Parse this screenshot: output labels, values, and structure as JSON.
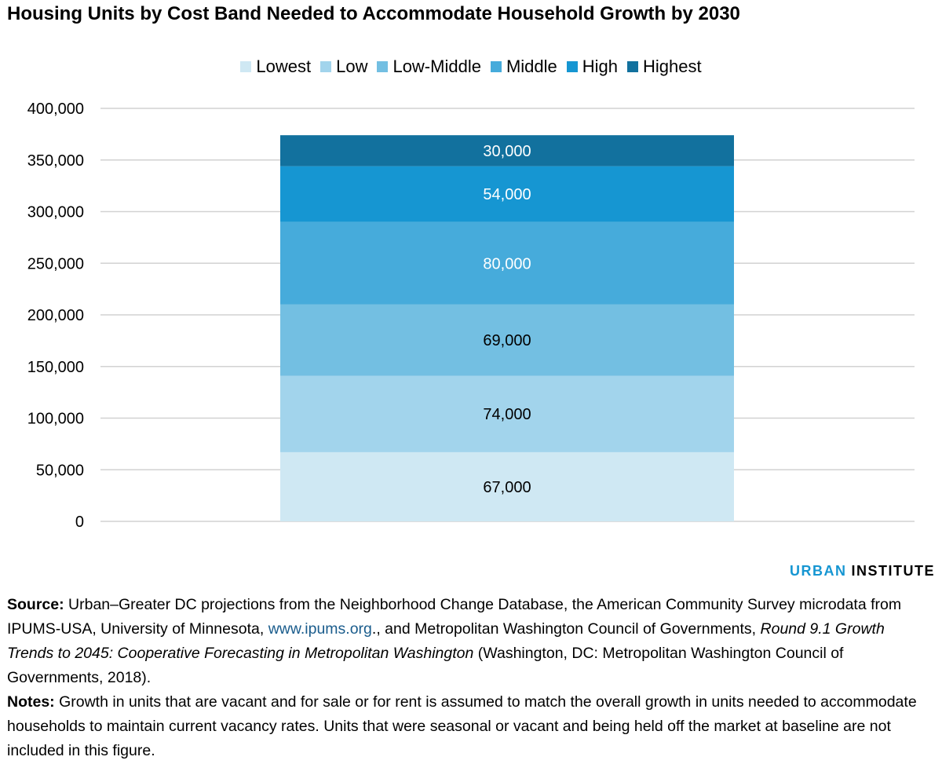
{
  "chart_data": {
    "type": "bar",
    "stacked": true,
    "title": "Housing Units by Cost Band Needed to Accommodate Household Growth by 2030",
    "xlabel": "",
    "ylabel": "",
    "ylim": [
      0,
      400000
    ],
    "yticks": [
      "0",
      "50,000",
      "100,000",
      "150,000",
      "200,000",
      "250,000",
      "300,000",
      "350,000",
      "400,000"
    ],
    "ytick_values": [
      0,
      50000,
      100000,
      150000,
      200000,
      250000,
      300000,
      350000,
      400000
    ],
    "grid": true,
    "legend_position": "top-center",
    "categories": [
      ""
    ],
    "series": [
      {
        "name": "Lowest",
        "values": [
          67000
        ],
        "label": "67,000",
        "color": "#cfe8f3",
        "label_color": "#000000"
      },
      {
        "name": "Low",
        "values": [
          74000
        ],
        "label": "74,000",
        "color": "#a2d4ec",
        "label_color": "#000000"
      },
      {
        "name": "Low-Middle",
        "values": [
          69000
        ],
        "label": "69,000",
        "color": "#73bfe2",
        "label_color": "#000000"
      },
      {
        "name": "Middle",
        "values": [
          80000
        ],
        "label": "80,000",
        "color": "#46abdb",
        "label_color": "#ffffff"
      },
      {
        "name": "High",
        "values": [
          54000
        ],
        "label": "54,000",
        "color": "#1696d2",
        "label_color": "#ffffff"
      },
      {
        "name": "Highest",
        "values": [
          30000
        ],
        "label": "30,000",
        "color": "#12719e",
        "label_color": "#ffffff"
      }
    ]
  },
  "brand": {
    "urban": "URBAN",
    "institute": "INSTITUTE"
  },
  "source": {
    "label": "Source:",
    "text1": " Urban–Greater DC projections from the Neighborhood Change Database, the American Community Survey microdata from IPUMS-USA, University of Minnesota, ",
    "link": "www.ipums.org",
    "text2": "., and Metropolitan Washington Council of Governments, ",
    "italic": "Round 9.1 Growth Trends to 2045: Cooperative Forecasting in Metropolitan Washington",
    "text3": " (Washington, DC: Metropolitan Washington Council of Governments, 2018)."
  },
  "notes": {
    "label": "Notes:",
    "text": " Growth in units that are vacant and for sale or for rent is assumed to match the overall growth in units needed to accommodate households to maintain current vacancy rates. Units that were seasonal or vacant and being held off the market at baseline are not included in this figure."
  }
}
